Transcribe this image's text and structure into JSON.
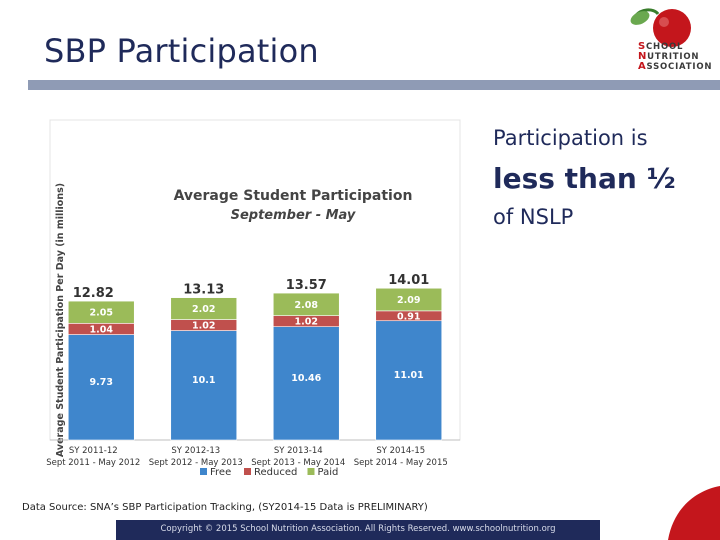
{
  "slide": {
    "title": "SBP Participation",
    "logo_lines": [
      "SCHOOL",
      "NUTRITION",
      "ASSOCIATION"
    ],
    "side_note": {
      "line1": "Participation is",
      "line2": "less than ½",
      "line3": "of NSLP"
    },
    "source": "Data Source: SNA’s SBP Participation Tracking, (SY2014-15 Data is PRELIMINARY)",
    "footer": "Copyright © 2015 School Nutrition Association. All Rights Reserved. www.schoolnutrition.org",
    "colors": {
      "title": "#1f2a5a",
      "rule": "#8f9bb5",
      "footer_bar": "#1f2a5a",
      "accent_red": "#c4161c"
    }
  },
  "chart_data": {
    "type": "bar",
    "stacked": true,
    "title": "Average Student Participation",
    "subtitle": "September - May",
    "ylabel": "Average Student Participation Per Day (in millions)",
    "categories": [
      [
        "SY 2011-12",
        "Sept 2011 - May 2012"
      ],
      [
        "SY 2012-13",
        "Sept 2012 - May 2013"
      ],
      [
        "SY 2013-14",
        "Sept 2013 - May 2014"
      ],
      [
        "SY 2014-15",
        "Sept 2014 - May 2015"
      ]
    ],
    "series": [
      {
        "name": "Free",
        "color": "#3f86cc",
        "values": [
          9.73,
          10.1,
          10.46,
          11.01
        ],
        "labels": [
          "9.73",
          "10.1",
          "10.46",
          "11.01"
        ]
      },
      {
        "name": "Reduced",
        "color": "#c0504d",
        "values": [
          1.04,
          1.02,
          1.02,
          0.91
        ],
        "labels": [
          "1.04",
          "1.02",
          "1.02",
          "0.91"
        ]
      },
      {
        "name": "Paid",
        "color": "#9bbb59",
        "values": [
          2.05,
          2.02,
          2.08,
          2.09
        ],
        "labels": [
          "2.05",
          "2.02",
          "2.08",
          "2.09"
        ]
      }
    ],
    "totals": [
      "12.82",
      "13.13",
      "13.57",
      "14.01"
    ],
    "ylim": [
      0,
      24
    ],
    "grid": false,
    "legend": "bottom"
  }
}
